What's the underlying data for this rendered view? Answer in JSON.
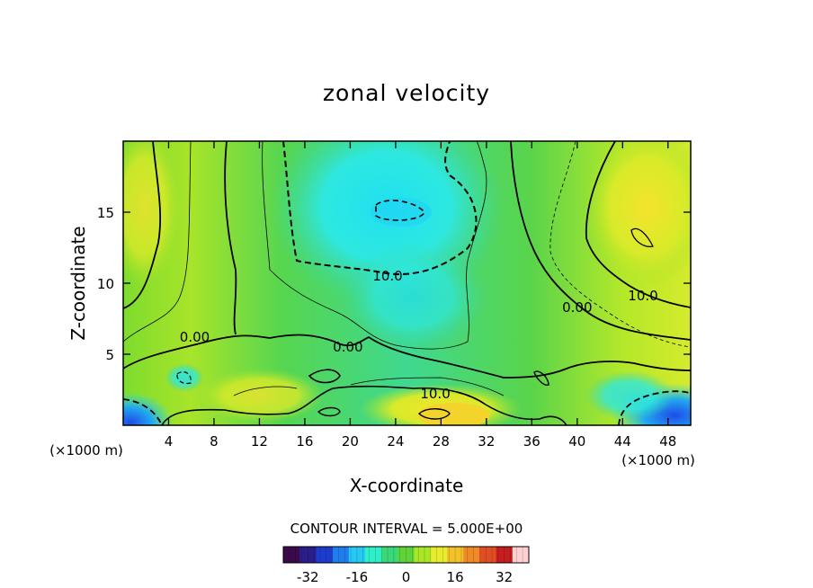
{
  "chart_data": {
    "type": "heatmap",
    "title": "zonal velocity",
    "xlabel": "X-coordinate",
    "ylabel": "Z-coordinate",
    "x_unit": "(×1000 m)",
    "x_unit_right": "(×1000 m)",
    "xlim": [
      0,
      50
    ],
    "ylim": [
      0,
      20
    ],
    "xticks": [
      4,
      8,
      12,
      16,
      20,
      24,
      28,
      32,
      36,
      40,
      44,
      48
    ],
    "yticks": [
      5,
      10,
      15
    ],
    "contour_interval_text": "CONTOUR INTERVAL = 5.000E+00",
    "contour_labels": [
      {
        "text": "0.00",
        "x": 6.3,
        "z": 6.2
      },
      {
        "text": "0.00",
        "x": 19.8,
        "z": 5.5
      },
      {
        "text": "0.00",
        "x": 40.0,
        "z": 8.3
      },
      {
        "text": "10.0",
        "x": 23.3,
        "z": 10.5
      },
      {
        "text": "10.0",
        "x": 27.5,
        "z": 2.2
      },
      {
        "text": "10.0",
        "x": 45.8,
        "z": 9.1
      }
    ],
    "colorbar": {
      "range": [
        -40,
        40
      ],
      "ticks": [
        "-32",
        "-16",
        "0",
        "16",
        "32"
      ],
      "tick_values": [
        -32,
        -16,
        0,
        16,
        32
      ],
      "colors": [
        "#3a0a4a",
        "#2a1e8a",
        "#1c3ccc",
        "#1f7df0",
        "#28c8f5",
        "#2ef0c8",
        "#3ad878",
        "#5ed43a",
        "#a8e626",
        "#e8ec2e",
        "#f2c228",
        "#f08a26",
        "#e04e24",
        "#c41e1e",
        "#ffd0d0"
      ]
    },
    "field_colors": {
      "strong_negative": "#1d55e8",
      "negative": "#2ad2e6",
      "near_zero": "#3bd884",
      "weak_positive": "#6ad238",
      "positive": "#b6ea28",
      "strong_positive": "#f0e22c"
    }
  }
}
